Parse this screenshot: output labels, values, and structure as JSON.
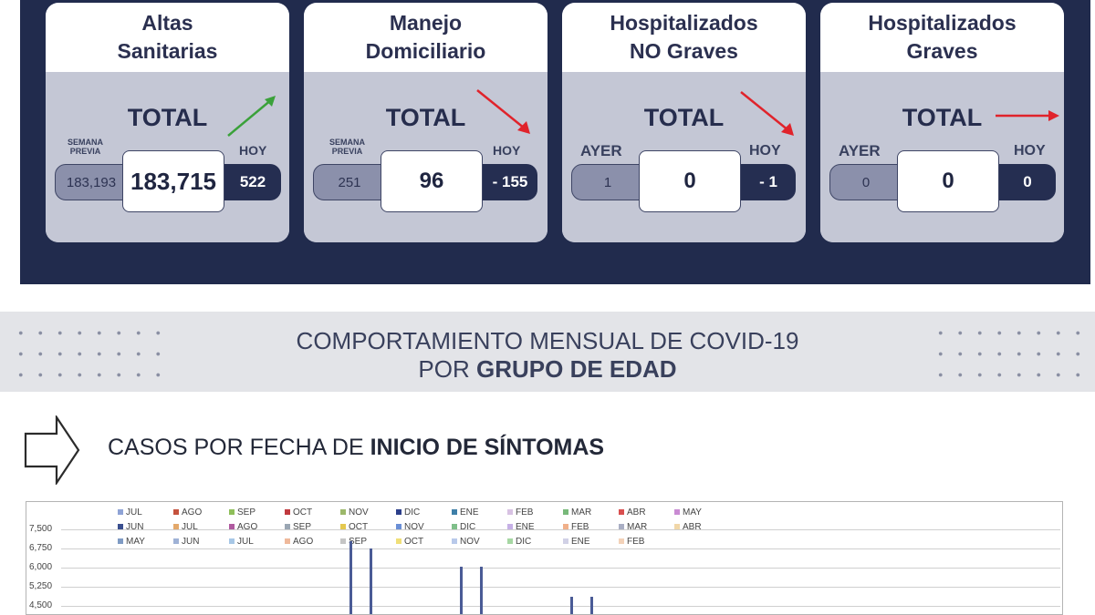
{
  "cards": [
    {
      "title_line1": "Altas",
      "title_line2": "Sanitarias",
      "total_label": "TOTAL",
      "prev_label_line1": "SEMANA",
      "prev_label_line2": "PREVIA",
      "prev_value": "183,193",
      "total_value": "183,715",
      "hoy_label": "HOY",
      "hoy_value": "522",
      "arrow": "up-right-green-arrow"
    },
    {
      "title_line1": "Manejo",
      "title_line2": "Domiciliario",
      "total_label": "TOTAL",
      "prev_label_line1": "SEMANA",
      "prev_label_line2": "PREVIA",
      "prev_value": "251",
      "total_value": "96",
      "hoy_label": "HOY",
      "hoy_value": "- 155",
      "arrow": "down-right-red-arrow"
    },
    {
      "title_line1": "Hospitalizados",
      "title_line2": "NO Graves",
      "total_label": "TOTAL",
      "prev_label_line1": "AYER",
      "prev_label_line2": "",
      "prev_value": "1",
      "total_value": "0",
      "hoy_label": "HOY",
      "hoy_value": "- 1",
      "arrow": "down-right-red-arrow"
    },
    {
      "title_line1": "Hospitalizados",
      "title_line2": "Graves",
      "total_label": "TOTAL",
      "prev_label_line1": "AYER",
      "prev_label_line2": "",
      "prev_value": "0",
      "total_value": "0",
      "hoy_label": "HOY",
      "hoy_value": "0",
      "arrow": "right-red-arrow"
    }
  ],
  "colors": {
    "navy": "#212b4d",
    "green_arrow": "#3aa13a",
    "red_arrow": "#e0232b",
    "bar": "#4a5b96"
  },
  "banner": {
    "line1": "COMPORTAMIENTO MENSUAL DE COVID-19",
    "line2_prefix": "POR ",
    "line2_bold": "GRUPO DE EDAD"
  },
  "subheader": {
    "prefix": "CASOS POR FECHA DE ",
    "bold": "INICIO  DE SÍNTOMAS",
    "icon": "outline-right-arrow-icon"
  },
  "chart_data": {
    "type": "bar",
    "legend_rows": [
      [
        {
          "label": "JUL",
          "color": "#8fa3d6"
        },
        {
          "label": "AGO",
          "color": "#c5523e"
        },
        {
          "label": "SEP",
          "color": "#8fbf5a"
        },
        {
          "label": "OCT",
          "color": "#c0393e"
        },
        {
          "label": "NOV",
          "color": "#9cb86a"
        },
        {
          "label": "DIC",
          "color": "#2c3f8a"
        },
        {
          "label": "ENE",
          "color": "#3e7fa8"
        },
        {
          "label": "FEB",
          "color": "#d8c2e3"
        },
        {
          "label": "MAR",
          "color": "#78b97a"
        },
        {
          "label": "ABR",
          "color": "#d94f4f"
        },
        {
          "label": "MAY",
          "color": "#c98bd3"
        }
      ],
      [
        {
          "label": "JUN",
          "color": "#3a4f8f"
        },
        {
          "label": "JUL",
          "color": "#e3a86a"
        },
        {
          "label": "AGO",
          "color": "#b05aa0"
        },
        {
          "label": "SEP",
          "color": "#9aa6b3"
        },
        {
          "label": "OCT",
          "color": "#e4c84f"
        },
        {
          "label": "NOV",
          "color": "#6a8fd6"
        },
        {
          "label": "DIC",
          "color": "#7fbf8a"
        },
        {
          "label": "ENE",
          "color": "#c6b0e6"
        },
        {
          "label": "FEB",
          "color": "#f0b08a"
        },
        {
          "label": "MAR",
          "color": "#a9aec4"
        },
        {
          "label": "ABR",
          "color": "#f1d7a8"
        }
      ],
      [
        {
          "label": "MAY",
          "color": "#7f9bc4"
        },
        {
          "label": "JUN",
          "color": "#9fb2d6"
        },
        {
          "label": "JUL",
          "color": "#a7c7e6"
        },
        {
          "label": "AGO",
          "color": "#efb99b"
        },
        {
          "label": "SEP",
          "color": "#c5c5c5"
        },
        {
          "label": "OCT",
          "color": "#f0df78"
        },
        {
          "label": "NOV",
          "color": "#b8c9ea"
        },
        {
          "label": "DIC",
          "color": "#a6d7a3"
        },
        {
          "label": "ENE",
          "color": "#d1d1e6"
        },
        {
          "label": "FEB",
          "color": "#f3d2b9"
        }
      ]
    ],
    "y_ticks": [
      "7,500",
      "6,750",
      "6,000",
      "5,250",
      "4,500"
    ],
    "ylim": [
      4000,
      7500
    ],
    "visible_bars": [
      7050,
      6750,
      6020,
      6050,
      4850,
      4870
    ]
  }
}
